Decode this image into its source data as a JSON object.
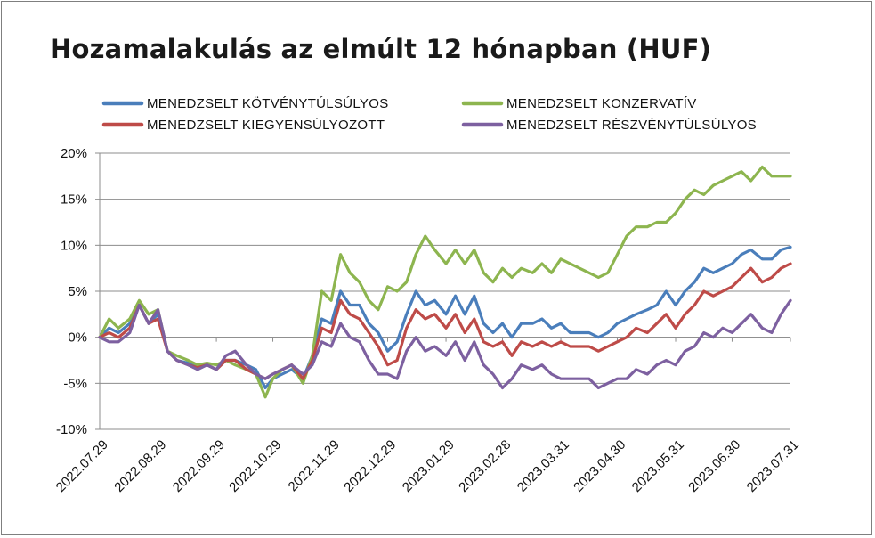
{
  "chart_data": {
    "type": "line",
    "title": "Hozamalakulás az elmúlt 12 hónapban (HUF)",
    "ylim": [
      -10,
      20
    ],
    "yticks": [
      -10,
      -5,
      0,
      5,
      10,
      15,
      20
    ],
    "ytick_labels": [
      "-10%",
      "-5%",
      "0%",
      "5%",
      "10%",
      "15%",
      "20%"
    ],
    "xlim": [
      "2022-07-29",
      "2023-07-31"
    ],
    "xtick_labels": [
      "2022.07.29",
      "2022.08.29",
      "2022.09.29",
      "2022.10.29",
      "2022.11.29",
      "2022.12.29",
      "2023.01.29",
      "2023.02.28",
      "2023.03.31",
      "2023.04.30",
      "2023.05.31",
      "2023.06.30",
      "2023.07.31"
    ],
    "xtick_dates": [
      "2022-07-29",
      "2022-08-29",
      "2022-09-29",
      "2022-10-29",
      "2022-11-29",
      "2022-12-29",
      "2023-01-29",
      "2023-02-28",
      "2023-03-31",
      "2023-04-30",
      "2023-05-31",
      "2023-06-30",
      "2023-07-31"
    ],
    "grid": "horizontal",
    "legend_position": "top",
    "dates": [
      "2022-07-29",
      "2022-08-03",
      "2022-08-08",
      "2022-08-14",
      "2022-08-19",
      "2022-08-24",
      "2022-08-29",
      "2022-09-03",
      "2022-09-08",
      "2022-09-14",
      "2022-09-19",
      "2022-09-24",
      "2022-09-29",
      "2022-10-04",
      "2022-10-09",
      "2022-10-15",
      "2022-10-20",
      "2022-10-25",
      "2022-10-29",
      "2022-11-03",
      "2022-11-08",
      "2022-11-14",
      "2022-11-19",
      "2022-11-24",
      "2022-11-29",
      "2022-12-04",
      "2022-12-09",
      "2022-12-14",
      "2022-12-19",
      "2022-12-24",
      "2022-12-29",
      "2023-01-03",
      "2023-01-08",
      "2023-01-13",
      "2023-01-18",
      "2023-01-23",
      "2023-01-29",
      "2023-02-03",
      "2023-02-08",
      "2023-02-13",
      "2023-02-18",
      "2023-02-23",
      "2023-02-28",
      "2023-03-05",
      "2023-03-10",
      "2023-03-16",
      "2023-03-21",
      "2023-03-26",
      "2023-03-31",
      "2023-04-05",
      "2023-04-10",
      "2023-04-15",
      "2023-04-20",
      "2023-04-25",
      "2023-04-30",
      "2023-05-05",
      "2023-05-10",
      "2023-05-16",
      "2023-05-21",
      "2023-05-26",
      "2023-05-31",
      "2023-06-05",
      "2023-06-10",
      "2023-06-15",
      "2023-06-20",
      "2023-06-25",
      "2023-06-30",
      "2023-07-05",
      "2023-07-10",
      "2023-07-16",
      "2023-07-21",
      "2023-07-26",
      "2023-07-31"
    ],
    "series": [
      {
        "name": "MENEDZSELT KÖTVÉNYTÚLSÚLYOS",
        "color": "#4a7ebb",
        "values": [
          0.0,
          1.0,
          0.5,
          1.5,
          3.5,
          1.5,
          2.5,
          -1.5,
          -2.5,
          -2.8,
          -3.3,
          -3.0,
          -3.5,
          -2.5,
          -2.5,
          -3.0,
          -3.5,
          -5.5,
          -4.5,
          -4.0,
          -3.5,
          -4.5,
          -2.0,
          2.0,
          1.5,
          5.0,
          3.5,
          3.5,
          1.5,
          0.5,
          -1.5,
          -0.5,
          2.5,
          5.0,
          3.5,
          4.0,
          2.5,
          4.5,
          2.5,
          4.5,
          1.5,
          0.5,
          1.5,
          0.0,
          1.5,
          1.5,
          2.0,
          1.0,
          1.5,
          0.5,
          0.5,
          0.5,
          0.0,
          0.5,
          1.5,
          2.0,
          2.5,
          3.0,
          3.5,
          5.0,
          3.5,
          5.0,
          6.0,
          7.5,
          7.0,
          7.5,
          8.0,
          9.0,
          9.5,
          8.5,
          8.5,
          9.5,
          9.8
        ]
      },
      {
        "name": "MENEDZSELT KONZERVATÍV",
        "color": "#8db54f",
        "values": [
          0.0,
          2.0,
          1.0,
          2.0,
          4.0,
          2.5,
          3.0,
          -1.5,
          -2.0,
          -2.5,
          -3.0,
          -2.8,
          -3.0,
          -2.5,
          -3.0,
          -3.5,
          -4.0,
          -6.5,
          -4.5,
          -3.5,
          -3.0,
          -5.0,
          -2.0,
          5.0,
          4.0,
          9.0,
          7.0,
          6.0,
          4.0,
          3.0,
          5.5,
          5.0,
          6.0,
          9.0,
          11.0,
          9.5,
          8.0,
          9.5,
          8.0,
          9.5,
          7.0,
          6.0,
          7.5,
          6.5,
          7.5,
          7.0,
          8.0,
          7.0,
          8.5,
          8.0,
          7.5,
          7.0,
          6.5,
          7.0,
          9.0,
          11.0,
          12.0,
          12.0,
          12.5,
          12.5,
          13.5,
          15.0,
          16.0,
          15.5,
          16.5,
          17.0,
          17.5,
          18.0,
          17.0,
          18.5,
          17.5,
          17.5,
          17.5
        ]
      },
      {
        "name": "MENEDZSELT KIEGYENSÚLYOZOTT",
        "color": "#be4b48",
        "values": [
          0.0,
          0.5,
          0.0,
          1.0,
          3.5,
          1.5,
          2.0,
          -1.5,
          -2.5,
          -3.0,
          -3.3,
          -3.0,
          -3.5,
          -2.5,
          -2.5,
          -3.5,
          -4.0,
          -4.5,
          -4.0,
          -3.5,
          -3.0,
          -4.5,
          -2.5,
          1.0,
          0.5,
          4.0,
          2.5,
          2.0,
          0.5,
          -1.0,
          -3.0,
          -2.5,
          1.0,
          3.0,
          2.0,
          2.5,
          1.0,
          2.5,
          0.5,
          2.0,
          -0.5,
          -1.0,
          -0.5,
          -2.0,
          -0.5,
          -1.0,
          -0.5,
          -1.0,
          -0.5,
          -1.0,
          -1.0,
          -1.0,
          -1.5,
          -1.0,
          -0.5,
          0.0,
          1.0,
          0.5,
          1.5,
          2.5,
          1.0,
          2.5,
          3.5,
          5.0,
          4.5,
          5.0,
          5.5,
          6.5,
          7.5,
          6.0,
          6.5,
          7.5,
          8.0
        ]
      },
      {
        "name": "MENEDZSELT RÉSZVÉNYTÚLSÚLYOS",
        "color": "#7d60a0",
        "values": [
          0.0,
          -0.5,
          -0.5,
          0.5,
          3.5,
          1.5,
          3.0,
          -1.5,
          -2.5,
          -3.0,
          -3.5,
          -3.0,
          -3.5,
          -2.0,
          -1.5,
          -3.0,
          -4.0,
          -4.5,
          -4.0,
          -3.5,
          -3.0,
          -4.0,
          -3.0,
          -0.5,
          -1.0,
          1.5,
          0.0,
          -0.5,
          -2.5,
          -4.0,
          -4.0,
          -4.5,
          -1.5,
          0.0,
          -1.5,
          -1.0,
          -2.0,
          -0.5,
          -2.5,
          -0.5,
          -3.0,
          -4.0,
          -5.5,
          -4.5,
          -3.0,
          -3.5,
          -3.0,
          -4.0,
          -4.5,
          -4.5,
          -4.5,
          -4.5,
          -5.5,
          -5.0,
          -4.5,
          -4.5,
          -3.5,
          -4.0,
          -3.0,
          -2.5,
          -3.0,
          -1.5,
          -1.0,
          0.5,
          0.0,
          1.0,
          0.5,
          1.5,
          2.5,
          1.0,
          0.5,
          2.5,
          4.0
        ]
      }
    ]
  }
}
